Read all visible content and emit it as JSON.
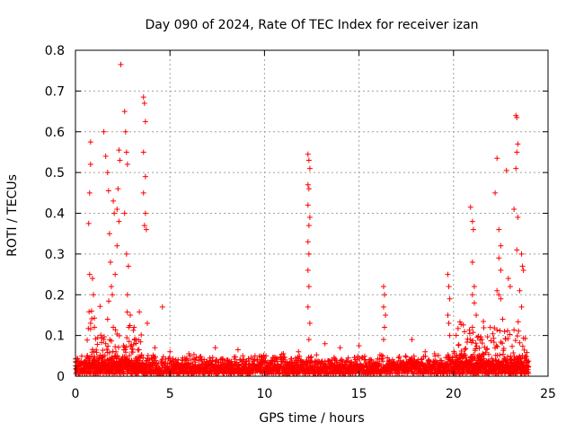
{
  "chart_data": {
    "type": "scatter",
    "title": "Day 090 of 2024, Rate Of TEC Index for receiver izan",
    "xlabel": "GPS time / hours",
    "ylabel": "ROTI / TECUs",
    "xlim": [
      0,
      25
    ],
    "ylim": [
      0,
      0.8
    ],
    "xticks": [
      "0",
      "5",
      "10",
      "15",
      "20",
      "25"
    ],
    "yticks": [
      "0",
      "0.1",
      "0.2",
      "0.3",
      "0.4",
      "0.5",
      "0.6",
      "0.7",
      "0.8"
    ],
    "grid": true,
    "marker": "+",
    "color": "#ff0000",
    "series": [
      {
        "points": [
          [
            0.8,
            0.575
          ],
          [
            0.8,
            0.52
          ],
          [
            0.75,
            0.45
          ],
          [
            0.7,
            0.375
          ],
          [
            0.75,
            0.25
          ],
          [
            0.9,
            0.24
          ],
          [
            0.95,
            0.2
          ],
          [
            0.85,
            0.16
          ],
          [
            0.8,
            0.13
          ],
          [
            1.0,
            0.12
          ],
          [
            1.5,
            0.6
          ],
          [
            1.6,
            0.54
          ],
          [
            1.7,
            0.5
          ],
          [
            1.75,
            0.455
          ],
          [
            1.8,
            0.35
          ],
          [
            1.85,
            0.28
          ],
          [
            1.9,
            0.22
          ],
          [
            1.95,
            0.2
          ],
          [
            1.7,
            0.14
          ],
          [
            2.0,
            0.12
          ],
          [
            2.0,
            0.43
          ],
          [
            2.05,
            0.4
          ],
          [
            2.2,
            0.41
          ],
          [
            2.25,
            0.46
          ],
          [
            2.3,
            0.555
          ],
          [
            2.35,
            0.53
          ],
          [
            2.4,
            0.765
          ],
          [
            2.3,
            0.38
          ],
          [
            2.2,
            0.32
          ],
          [
            2.1,
            0.25
          ],
          [
            2.6,
            0.65
          ],
          [
            2.65,
            0.6
          ],
          [
            2.7,
            0.55
          ],
          [
            2.75,
            0.52
          ],
          [
            2.6,
            0.4
          ],
          [
            2.7,
            0.3
          ],
          [
            2.8,
            0.27
          ],
          [
            2.75,
            0.2
          ],
          [
            2.9,
            0.15
          ],
          [
            3.1,
            0.12
          ],
          [
            3.6,
            0.685
          ],
          [
            3.65,
            0.67
          ],
          [
            3.7,
            0.625
          ],
          [
            3.6,
            0.55
          ],
          [
            3.7,
            0.49
          ],
          [
            3.6,
            0.45
          ],
          [
            3.7,
            0.4
          ],
          [
            3.65,
            0.37
          ],
          [
            3.75,
            0.36
          ],
          [
            3.8,
            0.13
          ],
          [
            4.6,
            0.17
          ],
          [
            4.2,
            0.07
          ],
          [
            5.0,
            0.06
          ],
          [
            6.0,
            0.055
          ],
          [
            7.4,
            0.07
          ],
          [
            8.6,
            0.065
          ],
          [
            9.5,
            0.05
          ],
          [
            11.0,
            0.055
          ],
          [
            11.8,
            0.06
          ],
          [
            12.3,
            0.545
          ],
          [
            12.35,
            0.53
          ],
          [
            12.4,
            0.51
          ],
          [
            12.3,
            0.47
          ],
          [
            12.35,
            0.46
          ],
          [
            12.3,
            0.42
          ],
          [
            12.4,
            0.39
          ],
          [
            12.35,
            0.37
          ],
          [
            12.3,
            0.33
          ],
          [
            12.35,
            0.3
          ],
          [
            12.3,
            0.26
          ],
          [
            12.35,
            0.22
          ],
          [
            12.3,
            0.17
          ],
          [
            12.4,
            0.13
          ],
          [
            12.35,
            0.09
          ],
          [
            13.2,
            0.08
          ],
          [
            14.0,
            0.07
          ],
          [
            15.0,
            0.075
          ],
          [
            16.3,
            0.22
          ],
          [
            16.35,
            0.2
          ],
          [
            16.3,
            0.17
          ],
          [
            16.4,
            0.15
          ],
          [
            16.35,
            0.12
          ],
          [
            16.3,
            0.09
          ],
          [
            17.8,
            0.09
          ],
          [
            18.5,
            0.06
          ],
          [
            19.0,
            0.055
          ],
          [
            19.7,
            0.25
          ],
          [
            19.75,
            0.22
          ],
          [
            19.8,
            0.19
          ],
          [
            19.7,
            0.15
          ],
          [
            19.75,
            0.13
          ],
          [
            19.8,
            0.1
          ],
          [
            20.9,
            0.415
          ],
          [
            21.0,
            0.38
          ],
          [
            21.05,
            0.36
          ],
          [
            21.0,
            0.28
          ],
          [
            21.1,
            0.22
          ],
          [
            21.0,
            0.2
          ],
          [
            21.1,
            0.18
          ],
          [
            21.2,
            0.15
          ],
          [
            21.0,
            0.12
          ],
          [
            21.5,
            0.09
          ],
          [
            22.2,
            0.45
          ],
          [
            22.3,
            0.535
          ],
          [
            22.4,
            0.36
          ],
          [
            22.5,
            0.32
          ],
          [
            22.4,
            0.29
          ],
          [
            22.5,
            0.26
          ],
          [
            22.3,
            0.21
          ],
          [
            22.4,
            0.2
          ],
          [
            22.5,
            0.19
          ],
          [
            22.6,
            0.14
          ],
          [
            22.7,
            0.11
          ],
          [
            22.8,
            0.505
          ],
          [
            22.9,
            0.24
          ],
          [
            23.0,
            0.22
          ],
          [
            23.2,
            0.41
          ],
          [
            23.3,
            0.64
          ],
          [
            23.35,
            0.635
          ],
          [
            23.4,
            0.57
          ],
          [
            23.35,
            0.55
          ],
          [
            23.3,
            0.51
          ],
          [
            23.4,
            0.39
          ],
          [
            23.35,
            0.31
          ],
          [
            23.6,
            0.3
          ],
          [
            23.65,
            0.27
          ],
          [
            23.7,
            0.26
          ],
          [
            23.6,
            0.17
          ],
          [
            23.5,
            0.21
          ],
          [
            23.8,
            0.05
          ]
        ]
      }
    ]
  }
}
